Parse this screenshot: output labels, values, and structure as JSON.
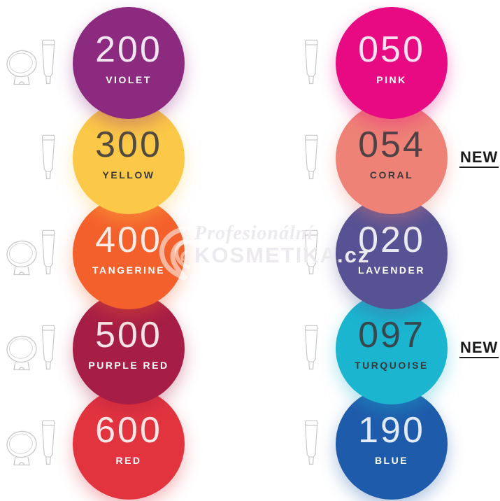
{
  "watermark": {
    "script_word": "Profesionální",
    "brand_word": "KOSMETIKA.cz",
    "color": "#ECEAEE",
    "swirl_color": "rgba(255,255,255,0.55)"
  },
  "badge_color": "#1A1A1A",
  "icon_stroke_color": "#C9C7CA",
  "text_light": "#FFFFFF",
  "text_dark": "#3A393D",
  "columns": [
    {
      "side": "left",
      "items": [
        {
          "code": "200",
          "name": "VIOLET",
          "color": "#8C2A80",
          "text_color": "#FFFFFF",
          "icons": [
            "jar",
            "tube"
          ],
          "badge": ""
        },
        {
          "code": "300",
          "name": "YELLOW",
          "color": "#FBC847",
          "text_color": "#3A393D",
          "icons": [
            "tube"
          ],
          "badge": ""
        },
        {
          "code": "400",
          "name": "TANGERINE",
          "color": "#F4602B",
          "text_color": "#FFFFFF",
          "icons": [
            "jar",
            "tube"
          ],
          "badge": ""
        },
        {
          "code": "500",
          "name": "PURPLE RED",
          "color": "#A61E45",
          "text_color": "#FFFFFF",
          "icons": [
            "jar",
            "tube"
          ],
          "badge": ""
        },
        {
          "code": "600",
          "name": "RED",
          "color": "#E2343F",
          "text_color": "#FFFFFF",
          "icons": [
            "jar",
            "tube"
          ],
          "badge": ""
        }
      ]
    },
    {
      "side": "right",
      "items": [
        {
          "code": "050",
          "name": "PINK",
          "color": "#E80A82",
          "text_color": "#FFFFFF",
          "icons": [
            "tube"
          ],
          "badge": ""
        },
        {
          "code": "054",
          "name": "CORAL",
          "color": "#EF8277",
          "text_color": "#3A393D",
          "icons": [
            "tube"
          ],
          "badge": "NEW"
        },
        {
          "code": "020",
          "name": "LAVENDER",
          "color": "#565293",
          "text_color": "#FFFFFF",
          "icons": [
            "tube"
          ],
          "badge": ""
        },
        {
          "code": "097",
          "name": "TURQUOISE",
          "color": "#1BB5CF",
          "text_color": "#3A393D",
          "icons": [
            "tube"
          ],
          "badge": "NEW"
        },
        {
          "code": "190",
          "name": "BLUE",
          "color": "#1F5BAB",
          "text_color": "#FFFFFF",
          "icons": [
            "tube"
          ],
          "badge": ""
        }
      ]
    }
  ]
}
